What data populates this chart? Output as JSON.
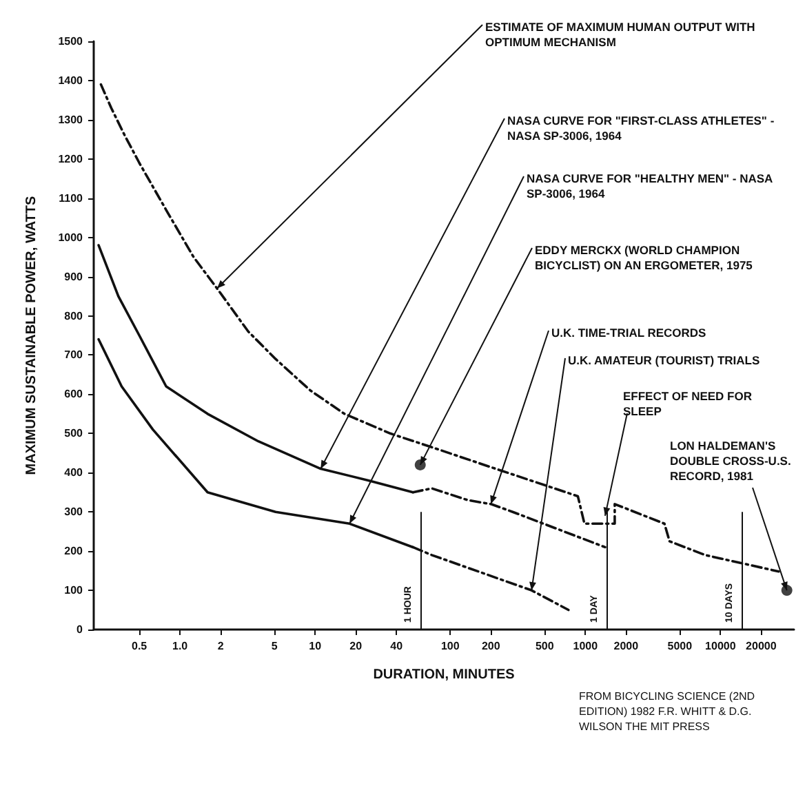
{
  "chart_data": {
    "type": "line",
    "xlabel": "DURATION, MINUTES",
    "ylabel": "MAXIMUM SUSTAINABLE POWER, WATTS",
    "log": "x",
    "xlim": [
      0.23,
      35000
    ],
    "xticks": [
      0.5,
      {
        "value": 1,
        "label": "1.0"
      },
      2,
      5,
      10,
      20,
      40,
      100,
      200,
      500,
      1000,
      2000,
      5000,
      10000,
      20000
    ],
    "ylim": [
      0,
      1500
    ],
    "yticks": [
      0,
      100,
      200,
      300,
      400,
      500,
      600,
      700,
      800,
      900,
      1000,
      1100,
      1200,
      1300,
      1400,
      1500
    ],
    "grid": false,
    "legend": false,
    "marker": "none",
    "series": [
      {
        "name": "ESTIMATE OF MAXIMUM HUMAN OUTPUT WITH OPTIMUM MECHANISM",
        "color": "#111111",
        "line_style": "dashed",
        "x": [
          0.26,
          0.31,
          0.39,
          0.5,
          0.79,
          1.26,
          1.88,
          3.2,
          5.1,
          9.2,
          16.5,
          36,
          73,
          217,
          880,
          985,
          1650,
          1650,
          3850,
          4200,
          7700,
          27000
        ],
        "values": [
          1390,
          1330,
          1260,
          1190,
          1070,
          950,
          870,
          760,
          690,
          610,
          550,
          500,
          465,
          410,
          340,
          270,
          270,
          320,
          270,
          225,
          190,
          148
        ]
      },
      {
        "name": "NASA CURVE FOR \"FIRST-CLASS ATHLETES\" - NASA SP-3006, 1964",
        "color": "#111111",
        "line_style": "solid",
        "x": [
          0.25,
          0.35,
          0.5,
          0.79,
          1.6,
          3.8,
          11,
          25,
          53
        ],
        "values": [
          980,
          850,
          750,
          620,
          550,
          480,
          410,
          380,
          350
        ]
      },
      {
        "name": "NASA CURVE FOR \"HEALTHY MEN\" - NASA SP-3006, 1964",
        "color": "#111111",
        "line_style": "solid",
        "x": [
          0.25,
          0.37,
          0.63,
          1.6,
          5.1,
          18,
          53
        ],
        "values": [
          740,
          620,
          510,
          350,
          300,
          270,
          210
        ]
      },
      {
        "name": "U.K. TIME-TRIAL RECORDS",
        "color": "#111111",
        "line_style": "dashed",
        "x": [
          53,
          73,
          135,
          200,
          290,
          1400
        ],
        "values": [
          350,
          360,
          330,
          320,
          300,
          210
        ]
      },
      {
        "name": "U.K. AMATEUR (TOURIST) TRIALS",
        "color": "#111111",
        "line_style": "dashed",
        "x": [
          53,
          73,
          400,
          750
        ],
        "values": [
          210,
          190,
          100,
          50
        ]
      },
      {
        "name": "EDDY MERCKX (WORLD CHAMPION BICYCLIST) ON AN ERGOMETER, 1975",
        "type": "scatter",
        "marker": "circle",
        "color": "#111111",
        "x": [
          60
        ],
        "values": [
          420
        ]
      },
      {
        "name": "LON HALDEMAN'S DOUBLE CROSS-U.S. RECORD, 1981",
        "type": "scatter",
        "marker": "circle",
        "color": "#111111",
        "x": [
          31000
        ],
        "values": [
          100
        ]
      }
    ],
    "ref_lines": [
      {
        "axis": "x",
        "value": 60,
        "label": "1 HOUR"
      },
      {
        "axis": "x",
        "value": 1440,
        "label": "1 DAY"
      },
      {
        "axis": "x",
        "value": 14400,
        "label": "10 DAYS"
      }
    ],
    "annotations": [
      {
        "text": "EFFECT OF NEED FOR SLEEP",
        "x": 1400,
        "y": 290
      },
      "FROM BICYCLING SCIENCE (2ND EDITION) 1982 F.R. WHITT & D.G. WILSON THE MIT PRESS"
    ]
  }
}
